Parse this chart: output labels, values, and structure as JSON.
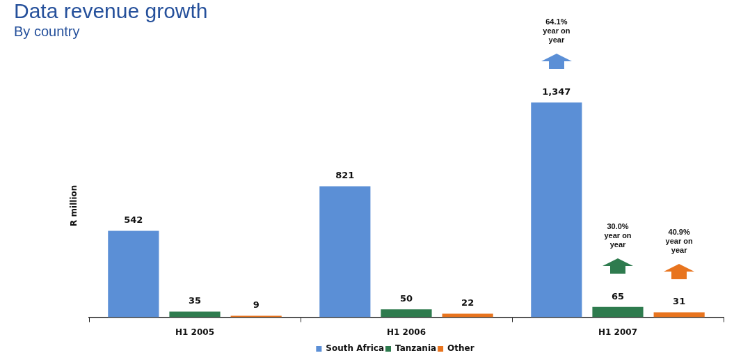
{
  "chart_data": {
    "type": "bar",
    "title": "Data revenue growth",
    "subtitle": "By country",
    "ylabel": "R million",
    "categories": [
      "H1 2005",
      "H1 2006",
      "H1 2007"
    ],
    "series": [
      {
        "name": "South Africa",
        "color": "#5b8fd6",
        "values": [
          542,
          821,
          1347
        ],
        "value_labels": [
          "542",
          "821",
          "1,347"
        ]
      },
      {
        "name": "Tanzania",
        "color": "#2e7b4e",
        "values": [
          35,
          50,
          65
        ],
        "value_labels": [
          "35",
          "50",
          "65"
        ]
      },
      {
        "name": "Other",
        "color": "#e8741e",
        "values": [
          9,
          22,
          31
        ],
        "value_labels": [
          "9",
          "22",
          "31"
        ]
      }
    ],
    "annotations": [
      "64.1% year on year",
      "30.0% year on year",
      "40.9% year on year"
    ],
    "legend": "bottom",
    "grid": false
  }
}
